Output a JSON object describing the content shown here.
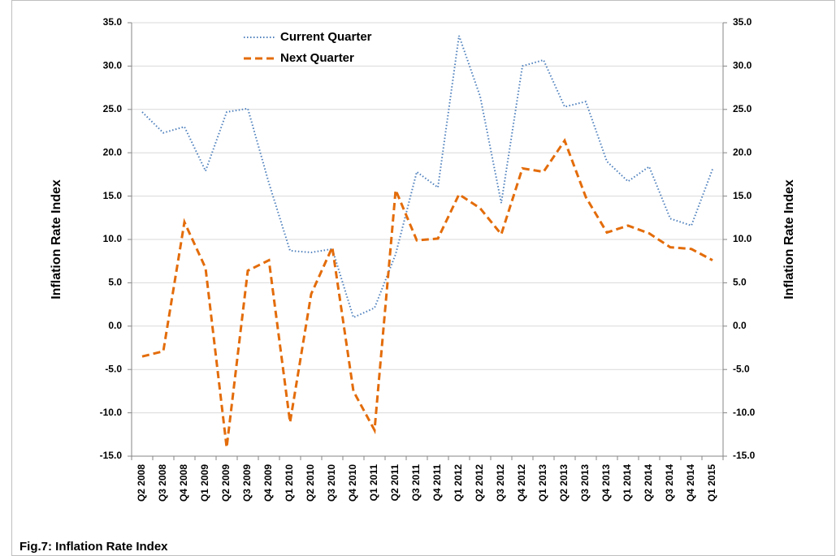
{
  "chart_data": {
    "type": "line",
    "categories": [
      "Q2 2008",
      "Q3 2008",
      "Q4 2008",
      "Q1 2009",
      "Q2 2009",
      "Q3 2009",
      "Q4 2009",
      "Q1 2010",
      "Q2 2010",
      "Q3 2010",
      "Q4 2010",
      "Q1 2011",
      "Q2 2011",
      "Q3 2011",
      "Q4 2011",
      "Q1 2012",
      "Q2 2012",
      "Q3 2012",
      "Q4 2012",
      "Q1 2013",
      "Q2 2013",
      "Q3 2013",
      "Q4 2013",
      "Q1 2014",
      "Q2 2014",
      "Q3 2014",
      "Q4 2014",
      "Q1 2015"
    ],
    "series": [
      {
        "name": "Current Quarter",
        "color": "#4f81bd",
        "style": "dotted",
        "values": [
          24.7,
          22.3,
          23.0,
          17.9,
          24.7,
          25.1,
          16.5,
          8.7,
          8.5,
          8.9,
          1.0,
          2.1,
          8.3,
          17.8,
          16.0,
          33.5,
          26.5,
          14.2,
          30.0,
          30.7,
          25.3,
          25.9,
          19.0,
          16.7,
          18.4,
          12.4,
          11.6,
          18.1
        ]
      },
      {
        "name": "Next Quarter",
        "color": "#e36c0a",
        "style": "dashed",
        "values": [
          -3.5,
          -2.9,
          12.0,
          6.7,
          -14.0,
          6.4,
          7.6,
          -11.1,
          3.7,
          9.1,
          -7.5,
          -12.0,
          15.7,
          9.9,
          10.1,
          15.2,
          13.6,
          10.6,
          18.2,
          17.8,
          21.4,
          14.9,
          10.8,
          11.6,
          10.7,
          9.1,
          8.9,
          7.6
        ]
      }
    ],
    "y_label": "Inflation Rate Index",
    "y2_label": "Inflation Rate Index",
    "ylim": [
      -15,
      35
    ],
    "yticks": [
      {
        "value": -15,
        "label": "-15.0"
      },
      {
        "value": -10,
        "label": "-10.0"
      },
      {
        "value": -5,
        "label": "-5.0"
      },
      {
        "value": 0,
        "label": "0.0"
      },
      {
        "value": 5,
        "label": "5.0"
      },
      {
        "value": 10,
        "label": "10.0"
      },
      {
        "value": 15,
        "label": "15.0"
      },
      {
        "value": 20,
        "label": "20.0"
      },
      {
        "value": 25,
        "label": "25.0"
      },
      {
        "value": 30,
        "label": "30.0"
      },
      {
        "value": 35,
        "label": "35.0"
      }
    ],
    "y2lim": [
      -15,
      35
    ],
    "y2ticks": [
      {
        "value": -15,
        "label": "-15.0"
      },
      {
        "value": -10,
        "label": "-10.0"
      },
      {
        "value": -5,
        "label": "-5.0"
      },
      {
        "value": 0,
        "label": "0.0"
      },
      {
        "value": 5,
        "label": "5.0"
      },
      {
        "value": 10,
        "label": "10.0"
      },
      {
        "value": 15,
        "label": "15.0"
      },
      {
        "value": 20,
        "label": "20.0"
      },
      {
        "value": 25,
        "label": "25.0"
      },
      {
        "value": 30,
        "label": "30.0"
      },
      {
        "value": 35,
        "label": "35.0"
      }
    ],
    "grid": true,
    "legend": "top-left",
    "caption": "Fig.7: Inflation Rate Index"
  }
}
